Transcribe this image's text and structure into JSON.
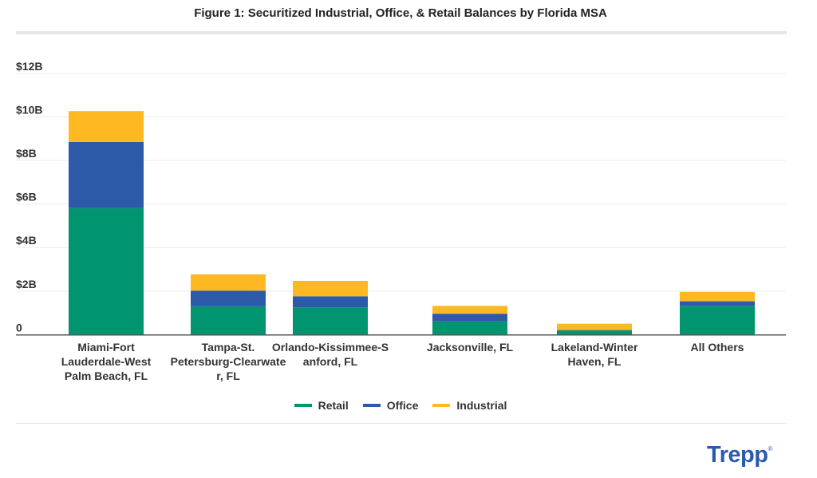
{
  "chart_data": {
    "type": "bar",
    "stacked": true,
    "title": "Figure 1: Securitized Industrial, Office, & Retail Balances by Florida MSA",
    "xlabel": "",
    "ylabel": "",
    "ylim": [
      0,
      12
    ],
    "y_unit": "$B",
    "yticks": [
      0,
      2,
      4,
      6,
      8,
      10,
      12
    ],
    "ytick_labels": [
      "0",
      "$2B",
      "$4B",
      "$6B",
      "$8B",
      "$10B",
      "$12B"
    ],
    "grid": true,
    "legend_position": "bottom",
    "categories": [
      [
        "Miami-Fort",
        "Lauderdale-West",
        "Palm Beach, FL"
      ],
      [
        "Tampa-St.",
        "Petersburg-Clearwate",
        "r, FL"
      ],
      [
        "Orlando-Kissimmee-S",
        "anford, FL"
      ],
      [
        "Jacksonville, FL"
      ],
      [
        "Lakeland-Winter",
        "Haven, FL"
      ],
      [
        "All Others"
      ]
    ],
    "series": [
      {
        "name": "Retail",
        "color": "#009570",
        "values": [
          5.81,
          1.3,
          1.25,
          0.61,
          0.19,
          1.32
        ]
      },
      {
        "name": "Office",
        "color": "#2d5aa8",
        "values": [
          3.04,
          0.72,
          0.51,
          0.35,
          0.02,
          0.21
        ]
      },
      {
        "name": "Industrial",
        "color": "#fdb822",
        "values": [
          1.42,
          0.75,
          0.71,
          0.36,
          0.29,
          0.43
        ]
      }
    ]
  },
  "brand": {
    "logo": "Trepp",
    "logo_color": "#2a5aad"
  }
}
